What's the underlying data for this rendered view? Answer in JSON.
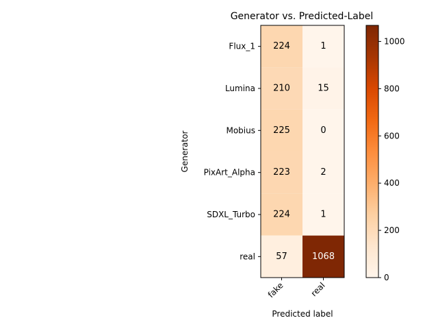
{
  "chart_data": {
    "type": "heatmap",
    "title": "Generator vs. Predicted-Label",
    "xlabel": "Predicted label",
    "ylabel": "Generator",
    "x_categories": [
      "fake",
      "real"
    ],
    "y_categories": [
      "Flux_1",
      "Lumina",
      "Mobius",
      "PixArt_Alpha",
      "SDXL_Turbo",
      "real"
    ],
    "values": [
      [
        224,
        1
      ],
      [
        210,
        15
      ],
      [
        225,
        0
      ],
      [
        223,
        2
      ],
      [
        224,
        1
      ],
      [
        57,
        1068
      ]
    ],
    "colormap": "Oranges",
    "colorbar": {
      "range": [
        0,
        1068
      ],
      "ticks": [
        0,
        200,
        400,
        600,
        800,
        1000
      ]
    }
  }
}
